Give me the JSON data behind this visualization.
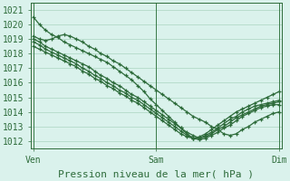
{
  "title": "",
  "xlabel": "Pression niveau de la mer( hPa )",
  "bg_color": "#daf2ec",
  "grid_color": "#aad4c0",
  "line_color": "#2d6b3a",
  "ylim": [
    1011.5,
    1021.5
  ],
  "yticks": [
    1012,
    1013,
    1014,
    1015,
    1016,
    1017,
    1018,
    1019,
    1020,
    1021
  ],
  "xtick_labels": [
    "Ven",
    "Sam",
    "Dim"
  ],
  "xtick_positions": [
    0,
    48,
    96
  ],
  "xlim": [
    -1,
    97
  ],
  "series": [
    [
      1020.5,
      1020.0,
      1019.6,
      1019.3,
      1019.1,
      1018.8,
      1018.6,
      1018.4,
      1018.2,
      1018.0,
      1017.8,
      1017.6,
      1017.4,
      1017.1,
      1016.8,
      1016.5,
      1016.2,
      1015.8,
      1015.4,
      1014.9,
      1014.5,
      1014.1,
      1013.7,
      1013.3,
      1012.9,
      1012.5,
      1012.2,
      1012.1,
      1012.2,
      1012.4,
      1012.6,
      1012.9,
      1013.1,
      1013.4,
      1013.7,
      1013.9,
      1014.1,
      1014.3,
      1014.4,
      1014.5,
      1014.5
    ],
    [
      1019.2,
      1019.0,
      1018.9,
      1019.0,
      1019.2,
      1019.3,
      1019.2,
      1019.0,
      1018.8,
      1018.5,
      1018.3,
      1018.0,
      1017.8,
      1017.5,
      1017.3,
      1017.0,
      1016.7,
      1016.4,
      1016.1,
      1015.8,
      1015.5,
      1015.2,
      1014.9,
      1014.6,
      1014.3,
      1014.0,
      1013.7,
      1013.5,
      1013.3,
      1013.0,
      1012.8,
      1012.5,
      1012.4,
      1012.5,
      1012.8,
      1013.0,
      1013.3,
      1013.5,
      1013.7,
      1013.9,
      1014.0
    ],
    [
      1019.0,
      1018.8,
      1018.5,
      1018.3,
      1018.1,
      1017.9,
      1017.7,
      1017.5,
      1017.3,
      1017.1,
      1016.8,
      1016.5,
      1016.3,
      1016.0,
      1015.8,
      1015.5,
      1015.2,
      1015.0,
      1014.7,
      1014.4,
      1014.1,
      1013.8,
      1013.5,
      1013.2,
      1012.9,
      1012.6,
      1012.4,
      1012.2,
      1012.3,
      1012.5,
      1012.8,
      1013.0,
      1013.3,
      1013.6,
      1013.8,
      1014.0,
      1014.2,
      1014.4,
      1014.5,
      1014.6,
      1014.7
    ],
    [
      1018.8,
      1018.6,
      1018.3,
      1018.1,
      1017.9,
      1017.7,
      1017.5,
      1017.3,
      1017.0,
      1016.8,
      1016.5,
      1016.3,
      1016.0,
      1015.8,
      1015.5,
      1015.3,
      1015.0,
      1014.8,
      1014.5,
      1014.2,
      1013.9,
      1013.6,
      1013.3,
      1013.0,
      1012.7,
      1012.4,
      1012.2,
      1012.2,
      1012.4,
      1012.6,
      1012.9,
      1013.2,
      1013.5,
      1013.7,
      1014.0,
      1014.2,
      1014.4,
      1014.5,
      1014.6,
      1014.7,
      1014.8
    ],
    [
      1018.5,
      1018.3,
      1018.1,
      1017.9,
      1017.7,
      1017.5,
      1017.3,
      1017.1,
      1016.8,
      1016.6,
      1016.3,
      1016.1,
      1015.8,
      1015.6,
      1015.3,
      1015.1,
      1014.8,
      1014.6,
      1014.3,
      1014.0,
      1013.7,
      1013.4,
      1013.1,
      1012.8,
      1012.5,
      1012.3,
      1012.2,
      1012.3,
      1012.5,
      1012.8,
      1013.1,
      1013.4,
      1013.7,
      1014.0,
      1014.2,
      1014.4,
      1014.6,
      1014.8,
      1015.0,
      1015.2,
      1015.4
    ]
  ],
  "marker_size": 3.0,
  "linewidth": 0.9,
  "font_size": 7,
  "tick_label_color": "#2d6b3a",
  "xlabel_color": "#2d6b3a",
  "vline_color": "#3a7a48",
  "spine_color": "#2d6b3a"
}
